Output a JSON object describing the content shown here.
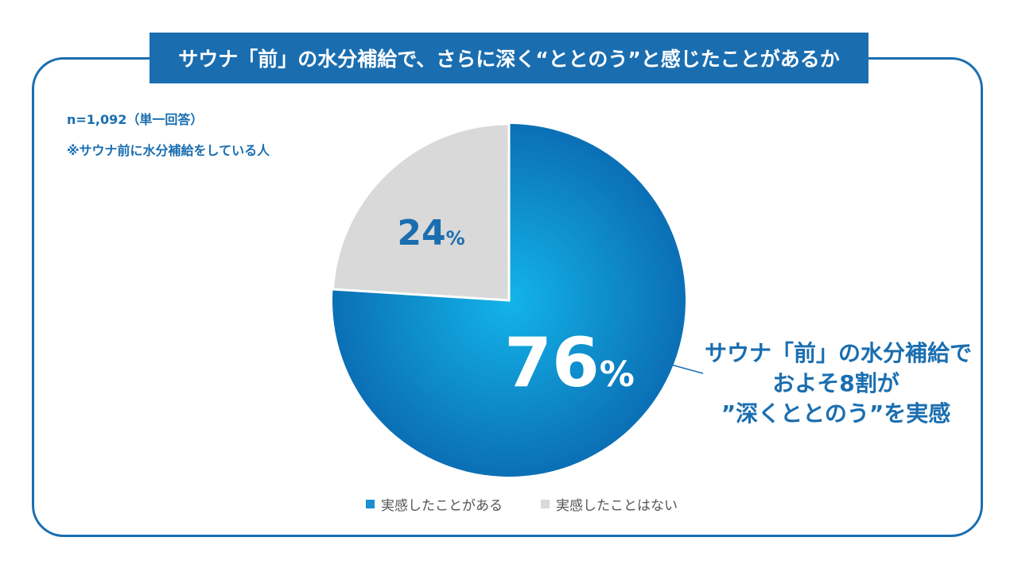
{
  "title": "サウナ「前」の水分補給で、さらに深く“ととのう”と感じたことがあるか",
  "notes": {
    "sample": "n=1,092（単一回答）",
    "scope": "※サウナ前に水分補給をしている人"
  },
  "callout": {
    "line1": "サウナ「前」の水分補給で",
    "line2": "およそ8割が",
    "line3": "”深くととのう”を実感"
  },
  "colors": {
    "accent": "#1a6eb0",
    "slice_yes_light": "#13b4e8",
    "slice_yes_dark": "#0b6fb5",
    "slice_no": "#d9d9d9"
  },
  "chart_data": {
    "type": "pie",
    "title": "サウナ「前」の水分補給で、さらに深く“ととのう”と感じたことがあるか",
    "slices": [
      {
        "label": "実感したことがある",
        "value": 76,
        "display": "76",
        "unit": "%"
      },
      {
        "label": "実感したことはない",
        "value": 24,
        "display": "24",
        "unit": "%"
      }
    ],
    "start": "top, clockwise",
    "legend": "bottom-center"
  }
}
